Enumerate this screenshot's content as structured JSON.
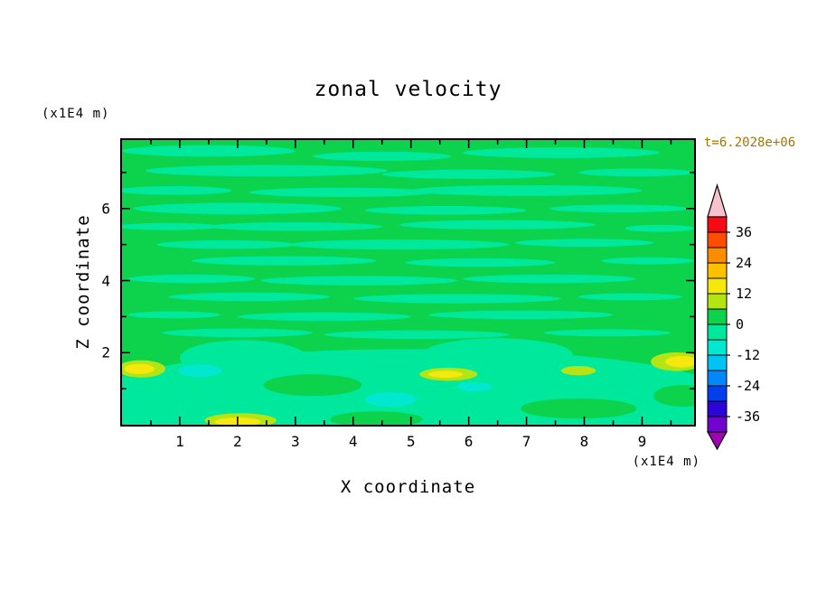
{
  "title": "zonal velocity",
  "annotations": {
    "time_label": "t=6.2028e+06",
    "time_color": "#a07800"
  },
  "axes": {
    "x_label": "X coordinate",
    "x_units": "(x1E4 m)",
    "z_label": "Z coordinate",
    "z_units": "(x1E4 m)",
    "x_range": [
      0,
      9.9
    ],
    "z_range": [
      0,
      7.9
    ],
    "x_ticks": [
      1,
      2,
      3,
      4,
      5,
      6,
      7,
      8,
      9
    ],
    "x_minor": [
      0.5,
      1.5,
      2.5,
      3.5,
      4.5,
      5.5,
      6.5,
      7.5,
      8.5,
      9.5
    ],
    "z_ticks": [
      2,
      4,
      6
    ],
    "z_minor": [
      1,
      3,
      5,
      7
    ]
  },
  "chart_data": {
    "type": "heatmap",
    "title": "zonal velocity",
    "xlabel": "X coordinate (x1E4 m)",
    "ylabel": "Z coordinate (x1E4 m)",
    "time": "t=6.2028e+06",
    "x_range": [
      0,
      9.9
    ],
    "z_range": [
      0,
      7.9
    ],
    "grid": false,
    "legend": "colorbar-right",
    "description": "Contour field of zonal velocity: mostly values between -6 and 6 (greens) in horizontal streaks; small patches of 6..18 (yellow) and -12..-6 (aqua) near the bottom boundary layer.",
    "colorbar": {
      "labels": [
        36,
        24,
        12,
        0,
        -12,
        -24,
        -36
      ],
      "over_color": "#f6c2ce",
      "under_color": "#a002b6",
      "segments": [
        {
          "from": 36,
          "to": 42,
          "color": "#f80a14"
        },
        {
          "from": 30,
          "to": 36,
          "color": "#fc4e02"
        },
        {
          "from": 24,
          "to": 30,
          "color": "#fc8c00"
        },
        {
          "from": 18,
          "to": 24,
          "color": "#fcc202"
        },
        {
          "from": 12,
          "to": 18,
          "color": "#f6e80c"
        },
        {
          "from": 6,
          "to": 12,
          "color": "#b4e414"
        },
        {
          "from": 0,
          "to": 6,
          "color": "#0cd24c"
        },
        {
          "from": -6,
          "to": 0,
          "color": "#00e89c"
        },
        {
          "from": -12,
          "to": -6,
          "color": "#00e8d0"
        },
        {
          "from": -18,
          "to": -12,
          "color": "#00c4f4"
        },
        {
          "from": -24,
          "to": -18,
          "color": "#0288fa"
        },
        {
          "from": -30,
          "to": -24,
          "color": "#0240ee"
        },
        {
          "from": -36,
          "to": -30,
          "color": "#2a06d8"
        },
        {
          "from": -42,
          "to": -36,
          "color": "#7004cc"
        }
      ]
    },
    "background_value": 3,
    "regions": [
      {
        "x": 5.0,
        "z": 0.95,
        "rx": 5.3,
        "ry": 1.15,
        "v": -3
      },
      {
        "x": 1.0,
        "z": 0.45,
        "rx": 2.2,
        "ry": 0.85,
        "v": -3
      },
      {
        "x": 8.9,
        "z": 0.45,
        "rx": 2.2,
        "ry": 0.8,
        "v": -3
      },
      {
        "x": 2.1,
        "z": 1.85,
        "rx": 1.1,
        "ry": 0.5,
        "v": -3
      },
      {
        "x": 6.5,
        "z": 1.95,
        "rx": 1.3,
        "ry": 0.45,
        "v": -3
      },
      {
        "x": 3.3,
        "z": 1.1,
        "rx": 0.85,
        "ry": 0.3,
        "v": 3
      },
      {
        "x": 7.9,
        "z": 0.45,
        "rx": 1.0,
        "ry": 0.28,
        "v": 3
      },
      {
        "x": 4.4,
        "z": 0.15,
        "rx": 0.8,
        "ry": 0.22,
        "v": 3
      },
      {
        "x": 9.7,
        "z": 0.8,
        "rx": 0.5,
        "ry": 0.3,
        "v": 3
      },
      {
        "x": 1.5,
        "z": 7.6,
        "rx": 1.5,
        "ry": 0.16,
        "v": -3
      },
      {
        "x": 4.5,
        "z": 7.45,
        "rx": 1.2,
        "ry": 0.13,
        "v": -3
      },
      {
        "x": 7.6,
        "z": 7.55,
        "rx": 1.7,
        "ry": 0.15,
        "v": -3
      },
      {
        "x": 2.5,
        "z": 7.05,
        "rx": 2.1,
        "ry": 0.16,
        "v": -3
      },
      {
        "x": 6.0,
        "z": 6.95,
        "rx": 1.5,
        "ry": 0.13,
        "v": -3
      },
      {
        "x": 8.9,
        "z": 7.0,
        "rx": 1.0,
        "ry": 0.11,
        "v": -3
      },
      {
        "x": 0.9,
        "z": 6.5,
        "rx": 1.0,
        "ry": 0.12,
        "v": -3
      },
      {
        "x": 3.8,
        "z": 6.45,
        "rx": 1.6,
        "ry": 0.13,
        "v": -3
      },
      {
        "x": 7.0,
        "z": 6.5,
        "rx": 2.0,
        "ry": 0.15,
        "v": -3
      },
      {
        "x": 2.0,
        "z": 6.0,
        "rx": 1.8,
        "ry": 0.16,
        "v": -3
      },
      {
        "x": 5.6,
        "z": 5.95,
        "rx": 1.4,
        "ry": 0.12,
        "v": -3
      },
      {
        "x": 8.6,
        "z": 6.0,
        "rx": 1.2,
        "ry": 0.11,
        "v": -3
      },
      {
        "x": 0.8,
        "z": 5.5,
        "rx": 0.9,
        "ry": 0.1,
        "v": -3
      },
      {
        "x": 3.0,
        "z": 5.5,
        "rx": 1.5,
        "ry": 0.12,
        "v": -3
      },
      {
        "x": 6.5,
        "z": 5.55,
        "rx": 1.7,
        "ry": 0.13,
        "v": -3
      },
      {
        "x": 9.3,
        "z": 5.45,
        "rx": 0.6,
        "ry": 0.1,
        "v": -3
      },
      {
        "x": 1.8,
        "z": 5.0,
        "rx": 1.2,
        "ry": 0.12,
        "v": -3
      },
      {
        "x": 4.8,
        "z": 5.0,
        "rx": 1.9,
        "ry": 0.14,
        "v": -3
      },
      {
        "x": 8.0,
        "z": 5.05,
        "rx": 1.2,
        "ry": 0.11,
        "v": -3
      },
      {
        "x": 2.8,
        "z": 4.55,
        "rx": 1.6,
        "ry": 0.13,
        "v": -3
      },
      {
        "x": 6.2,
        "z": 4.5,
        "rx": 1.3,
        "ry": 0.12,
        "v": -3
      },
      {
        "x": 9.1,
        "z": 4.55,
        "rx": 0.8,
        "ry": 0.1,
        "v": -3
      },
      {
        "x": 1.2,
        "z": 4.05,
        "rx": 1.1,
        "ry": 0.12,
        "v": -3
      },
      {
        "x": 4.1,
        "z": 4.0,
        "rx": 1.7,
        "ry": 0.13,
        "v": -3
      },
      {
        "x": 7.4,
        "z": 4.05,
        "rx": 1.5,
        "ry": 0.12,
        "v": -3
      },
      {
        "x": 2.2,
        "z": 3.55,
        "rx": 1.4,
        "ry": 0.12,
        "v": -3
      },
      {
        "x": 5.8,
        "z": 3.5,
        "rx": 1.8,
        "ry": 0.13,
        "v": -3
      },
      {
        "x": 8.8,
        "z": 3.55,
        "rx": 0.9,
        "ry": 0.1,
        "v": -3
      },
      {
        "x": 0.9,
        "z": 3.05,
        "rx": 0.8,
        "ry": 0.1,
        "v": -3
      },
      {
        "x": 3.5,
        "z": 3.0,
        "rx": 1.5,
        "ry": 0.12,
        "v": -3
      },
      {
        "x": 6.9,
        "z": 3.05,
        "rx": 1.6,
        "ry": 0.12,
        "v": -3
      },
      {
        "x": 2.0,
        "z": 2.55,
        "rx": 1.3,
        "ry": 0.12,
        "v": -3
      },
      {
        "x": 5.1,
        "z": 2.5,
        "rx": 1.6,
        "ry": 0.12,
        "v": -3
      },
      {
        "x": 8.4,
        "z": 2.55,
        "rx": 1.1,
        "ry": 0.1,
        "v": -3
      },
      {
        "x": 1.35,
        "z": 1.5,
        "rx": 0.38,
        "ry": 0.17,
        "v": -9
      },
      {
        "x": 4.65,
        "z": 0.7,
        "rx": 0.45,
        "ry": 0.2,
        "v": -9
      },
      {
        "x": 6.1,
        "z": 1.05,
        "rx": 0.3,
        "ry": 0.13,
        "v": -9
      },
      {
        "x": 0.33,
        "z": 1.55,
        "rx": 0.42,
        "ry": 0.24,
        "v": 9
      },
      {
        "x": 2.05,
        "z": 0.12,
        "rx": 0.62,
        "ry": 0.2,
        "v": 9
      },
      {
        "x": 5.65,
        "z": 1.4,
        "rx": 0.5,
        "ry": 0.18,
        "v": 9
      },
      {
        "x": 9.6,
        "z": 1.75,
        "rx": 0.45,
        "ry": 0.26,
        "v": 9
      },
      {
        "x": 7.9,
        "z": 1.5,
        "rx": 0.3,
        "ry": 0.13,
        "v": 9
      },
      {
        "x": 0.3,
        "z": 1.55,
        "rx": 0.26,
        "ry": 0.14,
        "v": 15
      },
      {
        "x": 2.0,
        "z": 0.08,
        "rx": 0.4,
        "ry": 0.12,
        "v": 15
      },
      {
        "x": 5.6,
        "z": 1.4,
        "rx": 0.3,
        "ry": 0.1,
        "v": 15
      },
      {
        "x": 9.68,
        "z": 1.75,
        "rx": 0.28,
        "ry": 0.16,
        "v": 15
      }
    ]
  }
}
